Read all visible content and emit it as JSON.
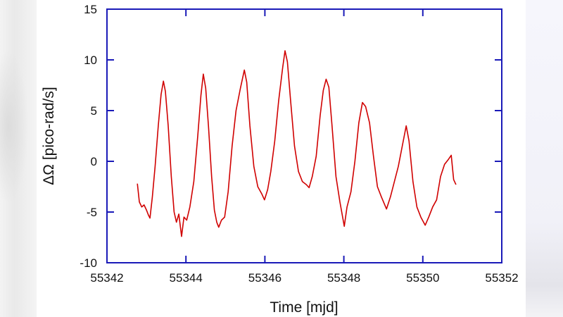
{
  "chart_data": {
    "type": "line",
    "title": "",
    "xlabel": "Time [mjd]",
    "ylabel": "ΔΩ [pico-rad/s]",
    "xlim": [
      55342,
      55352
    ],
    "ylim": [
      -10,
      15
    ],
    "xticks": [
      "55342",
      "55344",
      "55346",
      "55348",
      "55350",
      "55352"
    ],
    "yticks": [
      "15",
      "10",
      "5",
      "0",
      "-5",
      "-10"
    ],
    "grid": false,
    "legend": null,
    "colors": {
      "line": "#d00000",
      "axes": "#1a1ab8"
    },
    "series": [
      {
        "name": "ΔΩ",
        "x": [
          55342.77,
          55342.82,
          55342.88,
          55342.94,
          55343.0,
          55343.05,
          55343.09,
          55343.15,
          55343.22,
          55343.3,
          55343.37,
          55343.43,
          55343.48,
          55343.55,
          55343.63,
          55343.7,
          55343.76,
          55343.82,
          55343.89,
          55343.95,
          55344.02,
          55344.1,
          55344.2,
          55344.3,
          55344.38,
          55344.44,
          55344.5,
          55344.57,
          55344.65,
          55344.72,
          55344.78,
          55344.83,
          55344.9,
          55344.98,
          55345.07,
          55345.17,
          55345.27,
          55345.38,
          55345.48,
          55345.54,
          55345.62,
          55345.72,
          55345.82,
          55345.92,
          55345.99,
          55346.07,
          55346.15,
          55346.25,
          55346.35,
          55346.45,
          55346.51,
          55346.57,
          55346.65,
          55346.75,
          55346.85,
          55346.95,
          55347.05,
          55347.12,
          55347.2,
          55347.3,
          55347.4,
          55347.48,
          55347.55,
          55347.62,
          55347.7,
          55347.8,
          55347.9,
          55348.01,
          55348.08,
          55348.18,
          55348.28,
          55348.38,
          55348.47,
          55348.55,
          55348.65,
          55348.75,
          55348.85,
          55348.95,
          55349.08,
          55349.18,
          55349.28,
          55349.38,
          55349.48,
          55349.58,
          55349.65,
          55349.75,
          55349.85,
          55349.95,
          55350.06,
          55350.15,
          55350.25,
          55350.35,
          55350.45,
          55350.55,
          55350.65,
          55350.72,
          55350.78,
          55350.84
        ],
        "y": [
          -2.2,
          -4.0,
          -4.5,
          -4.3,
          -4.8,
          -5.3,
          -5.6,
          -3.5,
          -0.5,
          3.5,
          6.6,
          7.9,
          6.9,
          3.5,
          -1.5,
          -5.0,
          -6.0,
          -5.2,
          -7.4,
          -5.5,
          -5.8,
          -4.5,
          -2.0,
          2.5,
          6.5,
          8.6,
          7.2,
          3.5,
          -1.5,
          -4.8,
          -6.0,
          -6.5,
          -5.8,
          -5.5,
          -3.0,
          1.5,
          5.0,
          7.2,
          9.0,
          7.8,
          3.5,
          -0.5,
          -2.5,
          -3.2,
          -3.8,
          -2.8,
          -1.0,
          2.0,
          6.0,
          9.2,
          10.9,
          9.8,
          6.0,
          1.5,
          -1.0,
          -2.0,
          -2.3,
          -2.6,
          -1.5,
          0.5,
          4.5,
          7.0,
          8.1,
          7.3,
          3.5,
          -1.5,
          -4.0,
          -6.4,
          -4.5,
          -3.0,
          0.0,
          3.8,
          5.8,
          5.4,
          3.8,
          0.5,
          -2.5,
          -3.5,
          -4.7,
          -3.5,
          -2.0,
          -0.5,
          1.5,
          3.5,
          2.0,
          -2.0,
          -4.5,
          -5.5,
          -6.3,
          -5.5,
          -4.5,
          -3.8,
          -1.5,
          -0.3,
          0.2,
          0.6,
          -1.8,
          -2.3
        ]
      }
    ]
  }
}
